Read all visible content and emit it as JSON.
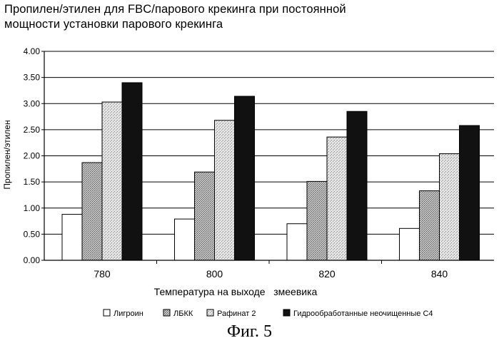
{
  "title_lines": [
    "Пропилен/этилен для FBC/парового крекинга при постоянной",
    "мощности установки парового крекинга"
  ],
  "figure_caption": "Фиг. 5",
  "chart_data": {
    "type": "bar",
    "title": "Пропилен/этилен для FBC/парового крекинга при постоянной мощности установки парового крекинга",
    "xlabel": "Температура на выходе   змеевика",
    "ylabel": "Пропилен/этилен",
    "categories": [
      "780",
      "800",
      "820",
      "840"
    ],
    "ylim": [
      0,
      4
    ],
    "yticks": [
      "0.00",
      "0.50",
      "1.00",
      "1.50",
      "2.00",
      "2.50",
      "3.00",
      "3.50",
      "4.00"
    ],
    "grid": true,
    "legend_position": "bottom",
    "series": [
      {
        "name": "Лигроин",
        "values": [
          0.88,
          0.79,
          0.7,
          0.61
        ],
        "fill": "#ffffff"
      },
      {
        "name": "ЛБКК",
        "values": [
          1.87,
          1.69,
          1.51,
          1.33
        ],
        "fill": "#a8a8a8"
      },
      {
        "name": "Рафинат 2",
        "values": [
          3.03,
          2.68,
          2.36,
          2.04
        ],
        "fill": "#cfcfcf"
      },
      {
        "name": "Гидрообработанные неочищенные С4",
        "values": [
          3.4,
          3.14,
          2.85,
          2.58
        ],
        "fill": "#111111"
      }
    ]
  }
}
